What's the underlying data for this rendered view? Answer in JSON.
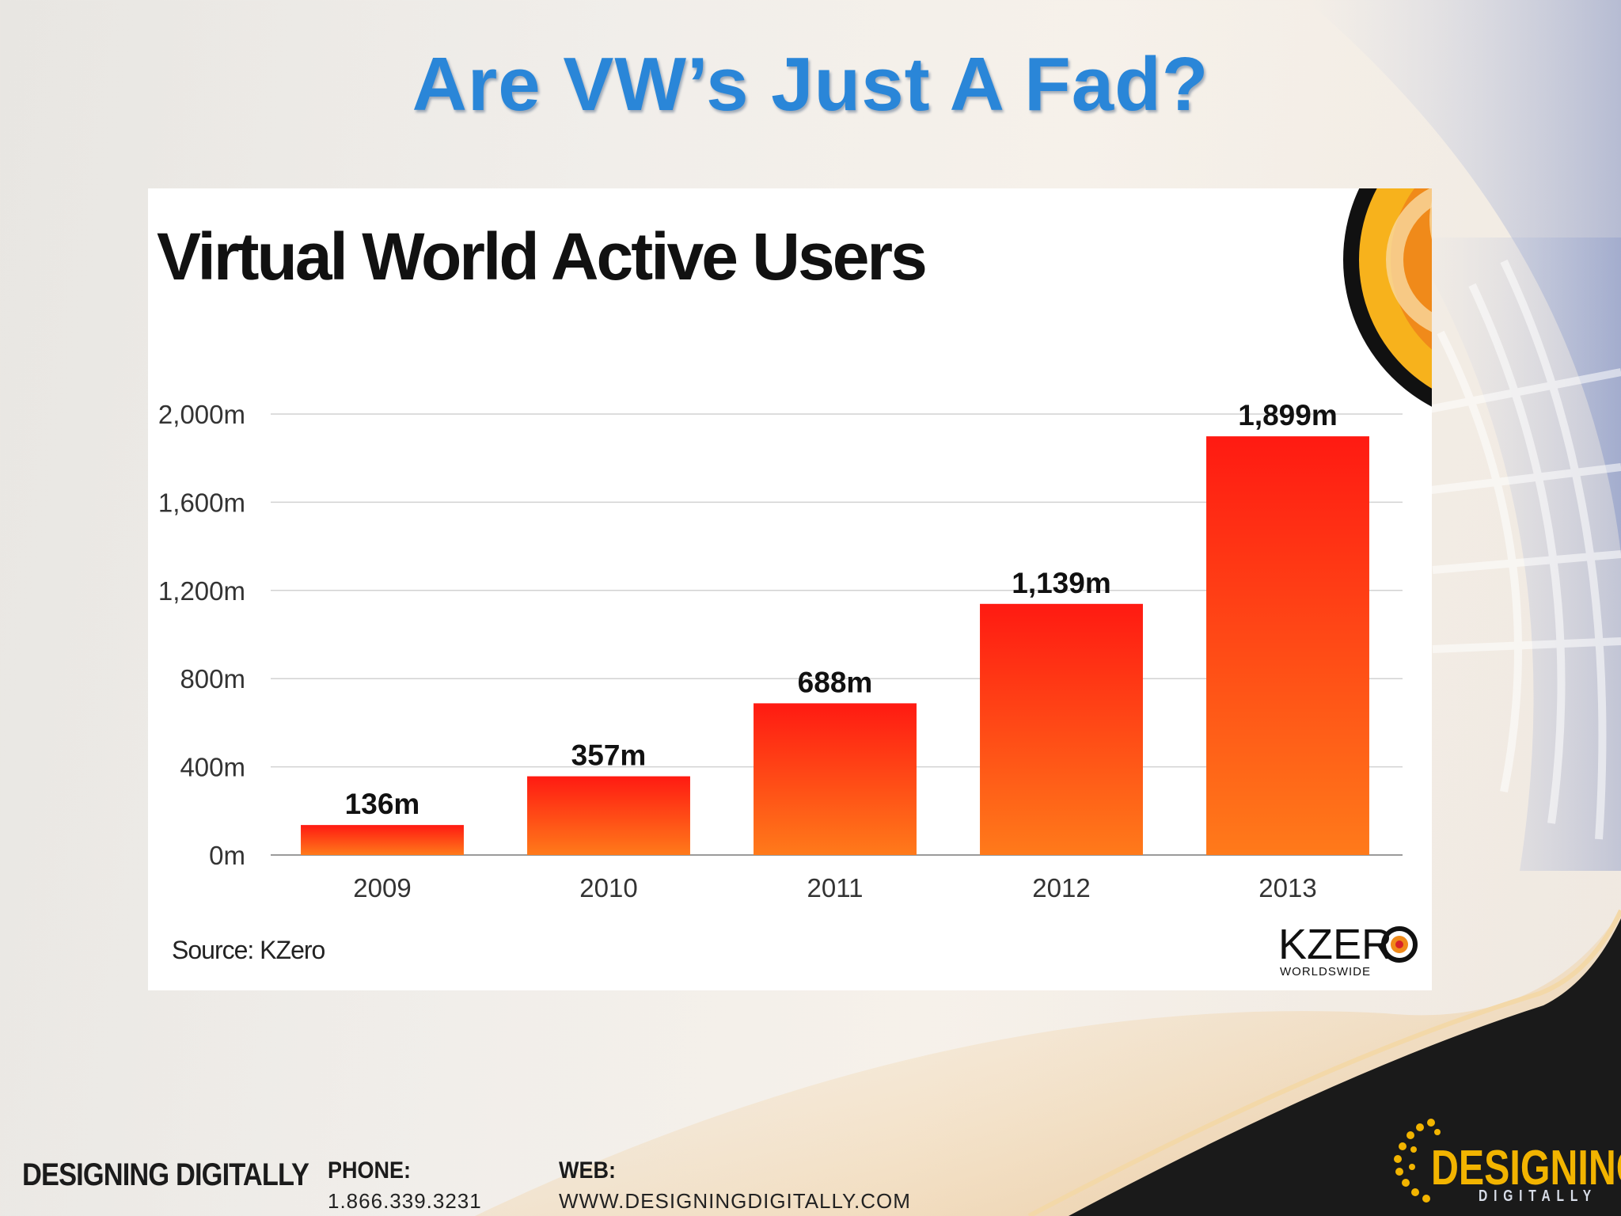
{
  "slide": {
    "title": "Are VW’s Just A Fad?"
  },
  "chart_data": {
    "type": "bar",
    "title": "Virtual World Active  Users",
    "categories": [
      "2009",
      "2010",
      "2011",
      "2012",
      "2013"
    ],
    "values": [
      136,
      357,
      688,
      1139,
      1899
    ],
    "data_labels": [
      "136m",
      "357m",
      "688m",
      "1,139m",
      "1,899m"
    ],
    "ylim": [
      0,
      2000
    ],
    "yticks": [
      0,
      400,
      800,
      1200,
      1600,
      2000
    ],
    "ytick_labels": [
      "0m",
      "400m",
      "800m",
      "1,200m",
      "1,600m",
      "2,000m"
    ],
    "grid": true,
    "bar_color_top": "#ff1a12",
    "bar_color_bottom": "#ff7a1a",
    "source": "Source: KZero",
    "brand": "KZER",
    "brand_sub": "WORLDSWIDE"
  },
  "footer": {
    "brand": "DESIGNING DIGITALLY",
    "phone_label": "PHONE:",
    "phone": "1.866.339.3231",
    "web_label": "WEB:",
    "web": "WWW.DESIGNINGDIGITALLY.COM",
    "logo_line1": "DESIGNING",
    "logo_line2": "DIGITALLY"
  }
}
